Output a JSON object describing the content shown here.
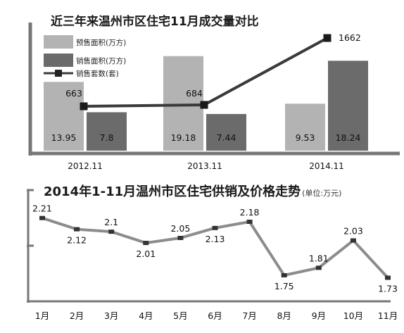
{
  "chart_data": [
    {
      "type": "bar",
      "title": "近三年来温州市区住宅11月成交量对比",
      "categories": [
        "2012.11",
        "2013.11",
        "2014.11"
      ],
      "series": [
        {
          "name": "预售面积(万方)",
          "kind": "bar",
          "color": "#b3b3b3",
          "values": [
            13.95,
            19.18,
            9.53
          ]
        },
        {
          "name": "销售面积(万方)",
          "kind": "bar",
          "color": "#6b6b6b",
          "values": [
            7.8,
            7.44,
            18.24
          ]
        },
        {
          "name": "销售套数(套)",
          "kind": "line",
          "color": "#3a3a3a",
          "values": [
            663,
            684,
            1662
          ]
        }
      ],
      "bar_labels": [
        "13.95",
        "7.8",
        "19.18",
        "7.44",
        "9.53",
        "18.24"
      ],
      "line_labels": [
        "663",
        "684",
        "1662"
      ],
      "legend_position": "top-left",
      "grid": false
    },
    {
      "type": "line",
      "title": "2014年1-11月温州市区住宅供销及价格走势",
      "unit_note": "(单位:万元)",
      "categories": [
        "1月",
        "2月",
        "3月",
        "4月",
        "5月",
        "6月",
        "7月",
        "8月",
        "9月",
        "10月",
        "11月"
      ],
      "series": [
        {
          "color": "#8c8c8c",
          "values": [
            2.21,
            2.12,
            2.1,
            2.01,
            2.05,
            2.13,
            2.18,
            1.75,
            1.81,
            2.03,
            1.73
          ]
        }
      ],
      "value_labels": [
        "2.21",
        "2.12",
        "2.1",
        "2.01",
        "2.05",
        "2.13",
        "2.18",
        "1.75",
        "1.81",
        "2.03",
        "1.73"
      ],
      "ylim": [
        1.65,
        2.3
      ],
      "grid": false
    }
  ]
}
